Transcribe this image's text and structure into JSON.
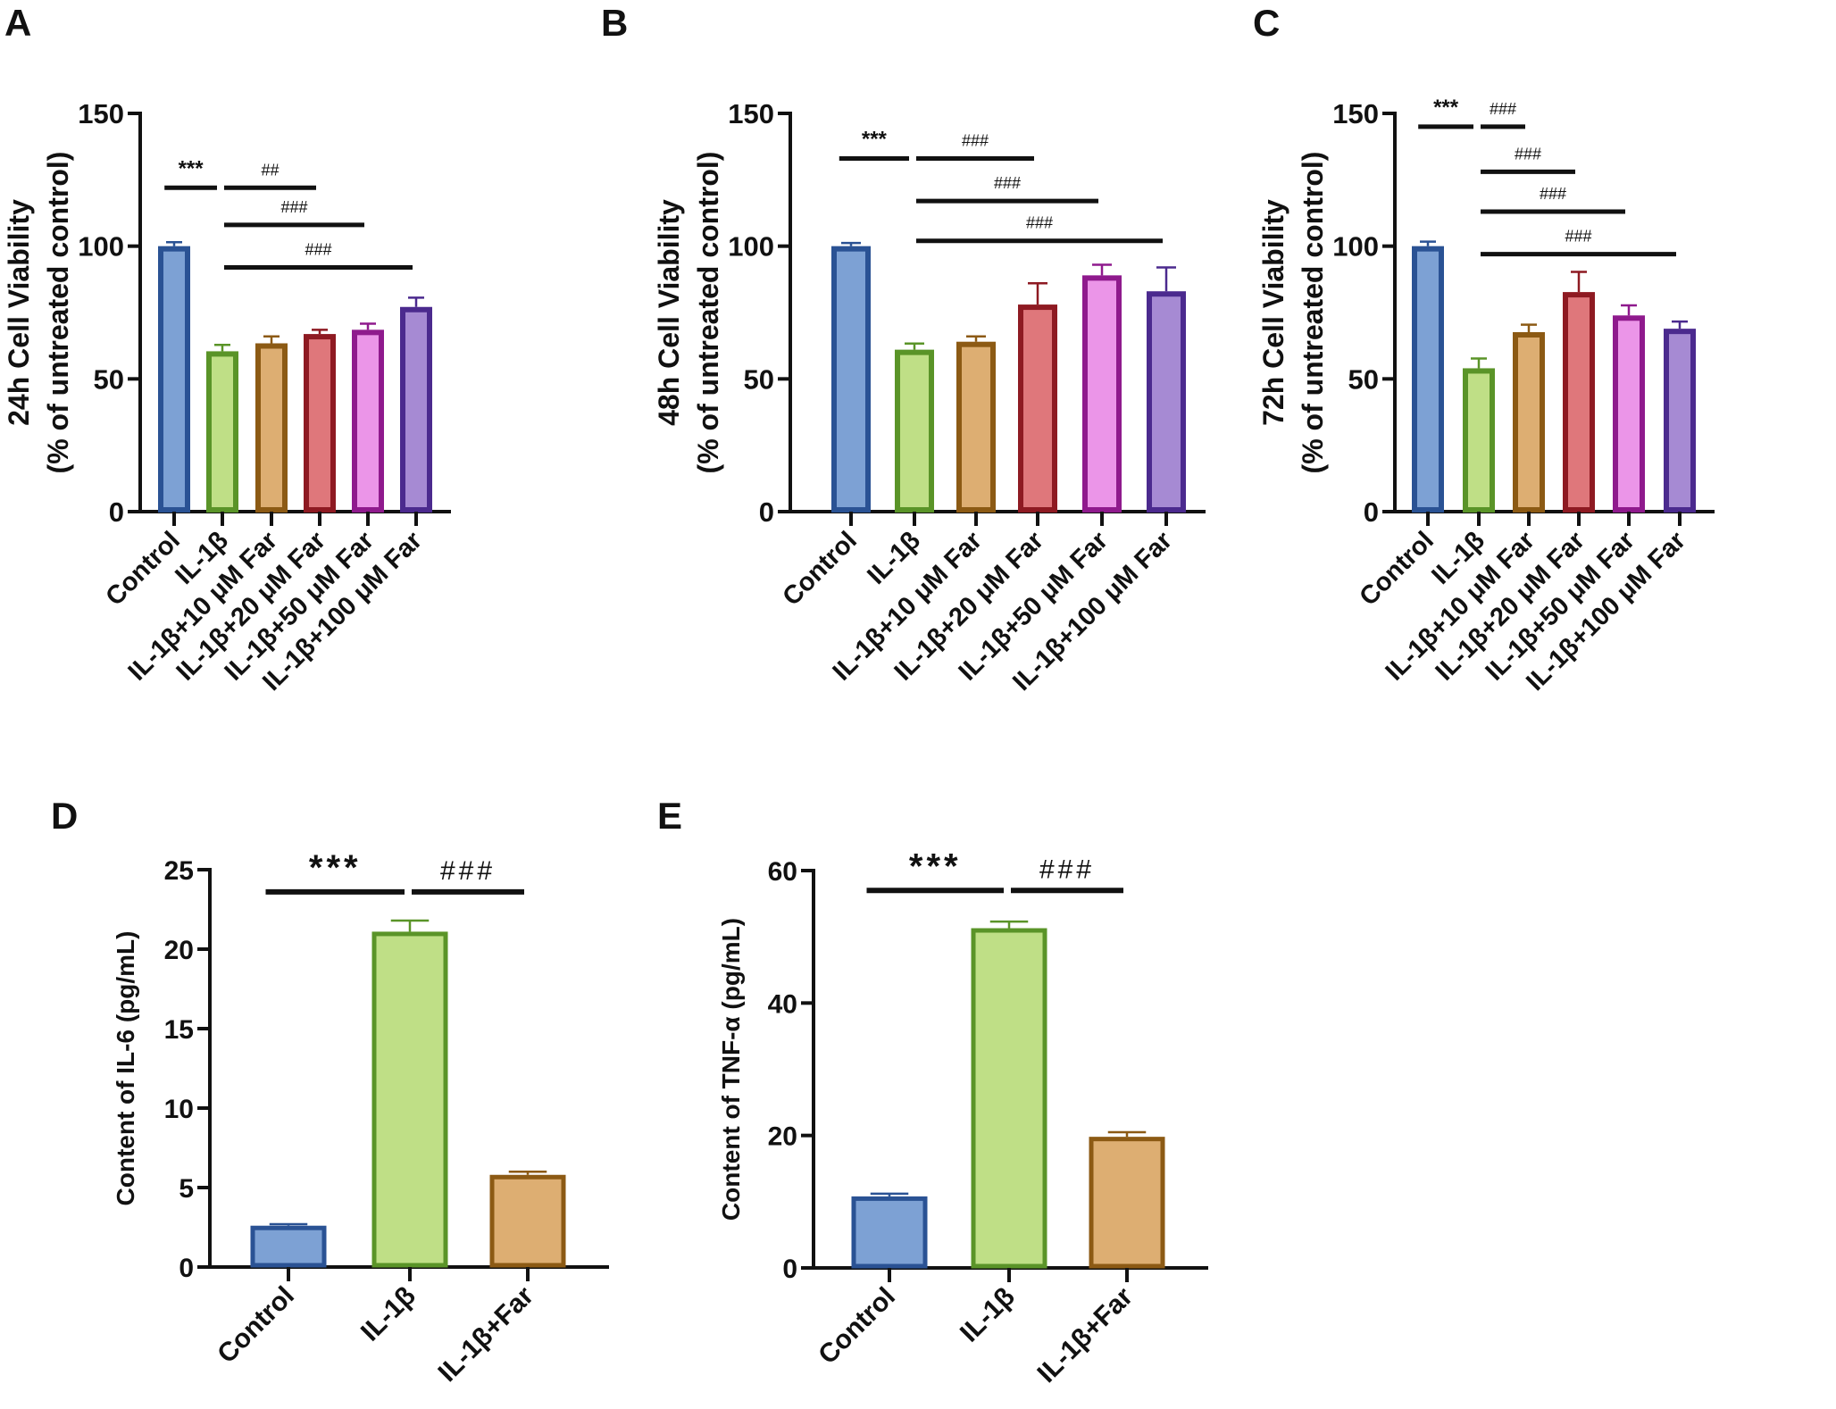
{
  "colors": {
    "fills": [
      "#7da1d4",
      "#bfdf86",
      "#ddae72",
      "#df777b",
      "#eb95e8",
      "#a68ad3"
    ],
    "strokes": [
      "#2a5294",
      "#5a9428",
      "#8c5a14",
      "#8e1a22",
      "#8f1a8d",
      "#4b2a8e"
    ]
  },
  "chart_data": [
    {
      "panel": "A",
      "type": "bar",
      "ylabel": [
        "24h Cell Viability",
        "(% of untreated control)"
      ],
      "categories": [
        "Control",
        "IL-1β",
        "IL-1β+10 μM Far",
        "IL-1β+20 μM Far",
        "IL-1β+50 μM Far",
        "IL-1β+100 μM Far"
      ],
      "values": [
        100,
        60.4,
        63.4,
        66.9,
        68.5,
        77.1
      ],
      "errors": [
        1.5,
        2.4,
        2.6,
        1.6,
        2.3,
        3.5
      ],
      "ylim": [
        0,
        150
      ],
      "yticks": [
        0,
        50,
        100,
        150
      ],
      "significance": [
        {
          "from": 0,
          "to": 1,
          "y": 122,
          "label": "***"
        },
        {
          "from": 1,
          "to": 3,
          "y": 122,
          "label": "##"
        },
        {
          "from": 1,
          "to": 4,
          "y": 108,
          "label": "###"
        },
        {
          "from": 1,
          "to": 5,
          "y": 92,
          "label": "###"
        }
      ]
    },
    {
      "panel": "B",
      "type": "bar",
      "ylabel": [
        "48h Cell Viability",
        "(% of untreated control)"
      ],
      "categories": [
        "Control",
        "IL-1β",
        "IL-1β+10 μM Far",
        "IL-1β+20 μM Far",
        "IL-1β+50 μM Far",
        "IL-1β+100 μM Far"
      ],
      "values": [
        100,
        61,
        64,
        78,
        89,
        83
      ],
      "errors": [
        1.2,
        2.3,
        2,
        8,
        4,
        9
      ],
      "ylim": [
        0,
        150
      ],
      "yticks": [
        0,
        50,
        100,
        150
      ],
      "significance": [
        {
          "from": 0,
          "to": 1,
          "y": 133,
          "label": "***"
        },
        {
          "from": 1,
          "to": 3,
          "y": 133,
          "label": "###"
        },
        {
          "from": 1,
          "to": 4,
          "y": 117,
          "label": "###"
        },
        {
          "from": 1,
          "to": 5,
          "y": 102,
          "label": "###"
        }
      ]
    },
    {
      "panel": "C",
      "type": "bar",
      "ylabel": [
        "72h Cell Viability",
        "(% of untreated control)"
      ],
      "categories": [
        "Control",
        "IL-1β",
        "IL-1β+10 μM Far",
        "IL-1β+20 μM Far",
        "IL-1β+50 μM Far",
        "IL-1β+100 μM Far"
      ],
      "values": [
        100,
        54,
        67.6,
        82.7,
        73.9,
        68.9
      ],
      "errors": [
        1.7,
        3.7,
        2.8,
        7.6,
        3.8,
        2.7
      ],
      "ylim": [
        0,
        150
      ],
      "yticks": [
        0,
        50,
        100,
        150
      ],
      "significance": [
        {
          "from": 0,
          "to": 1,
          "y": 145,
          "label": "***"
        },
        {
          "from": 1,
          "to": 2,
          "y": 145,
          "label": "###"
        },
        {
          "from": 1,
          "to": 3,
          "y": 128,
          "label": "###"
        },
        {
          "from": 1,
          "to": 4,
          "y": 113,
          "label": "###"
        },
        {
          "from": 1,
          "to": 5,
          "y": 97,
          "label": "###"
        }
      ]
    },
    {
      "panel": "D",
      "type": "bar",
      "ylabel": [
        "Content of IL-6 (pg/mL)"
      ],
      "categories": [
        "Control",
        "IL-1β",
        "IL-1β+Far"
      ],
      "values": [
        2.6,
        21.1,
        5.8
      ],
      "errors": [
        0.1,
        0.7,
        0.2
      ],
      "ylim": [
        0,
        25
      ],
      "yticks": [
        0,
        5,
        10,
        15,
        20,
        25
      ],
      "significance": [
        {
          "from": 0,
          "to": 1,
          "y": 23.6,
          "label": "***"
        },
        {
          "from": 1,
          "to": 2,
          "y": 23.6,
          "label": "###"
        }
      ]
    },
    {
      "panel": "E",
      "type": "bar",
      "ylabel": [
        "Content of TNF-α (pg/mL)"
      ],
      "categories": [
        "Control",
        "IL-1β",
        "IL-1β+Far"
      ],
      "values": [
        10.8,
        51.3,
        19.8
      ],
      "errors": [
        0.4,
        1.0,
        0.7
      ],
      "ylim": [
        0,
        60
      ],
      "yticks": [
        0,
        20,
        40,
        60
      ],
      "significance": [
        {
          "from": 0,
          "to": 1,
          "y": 57,
          "label": "***"
        },
        {
          "from": 1,
          "to": 2,
          "y": 57,
          "label": "###"
        }
      ]
    }
  ]
}
